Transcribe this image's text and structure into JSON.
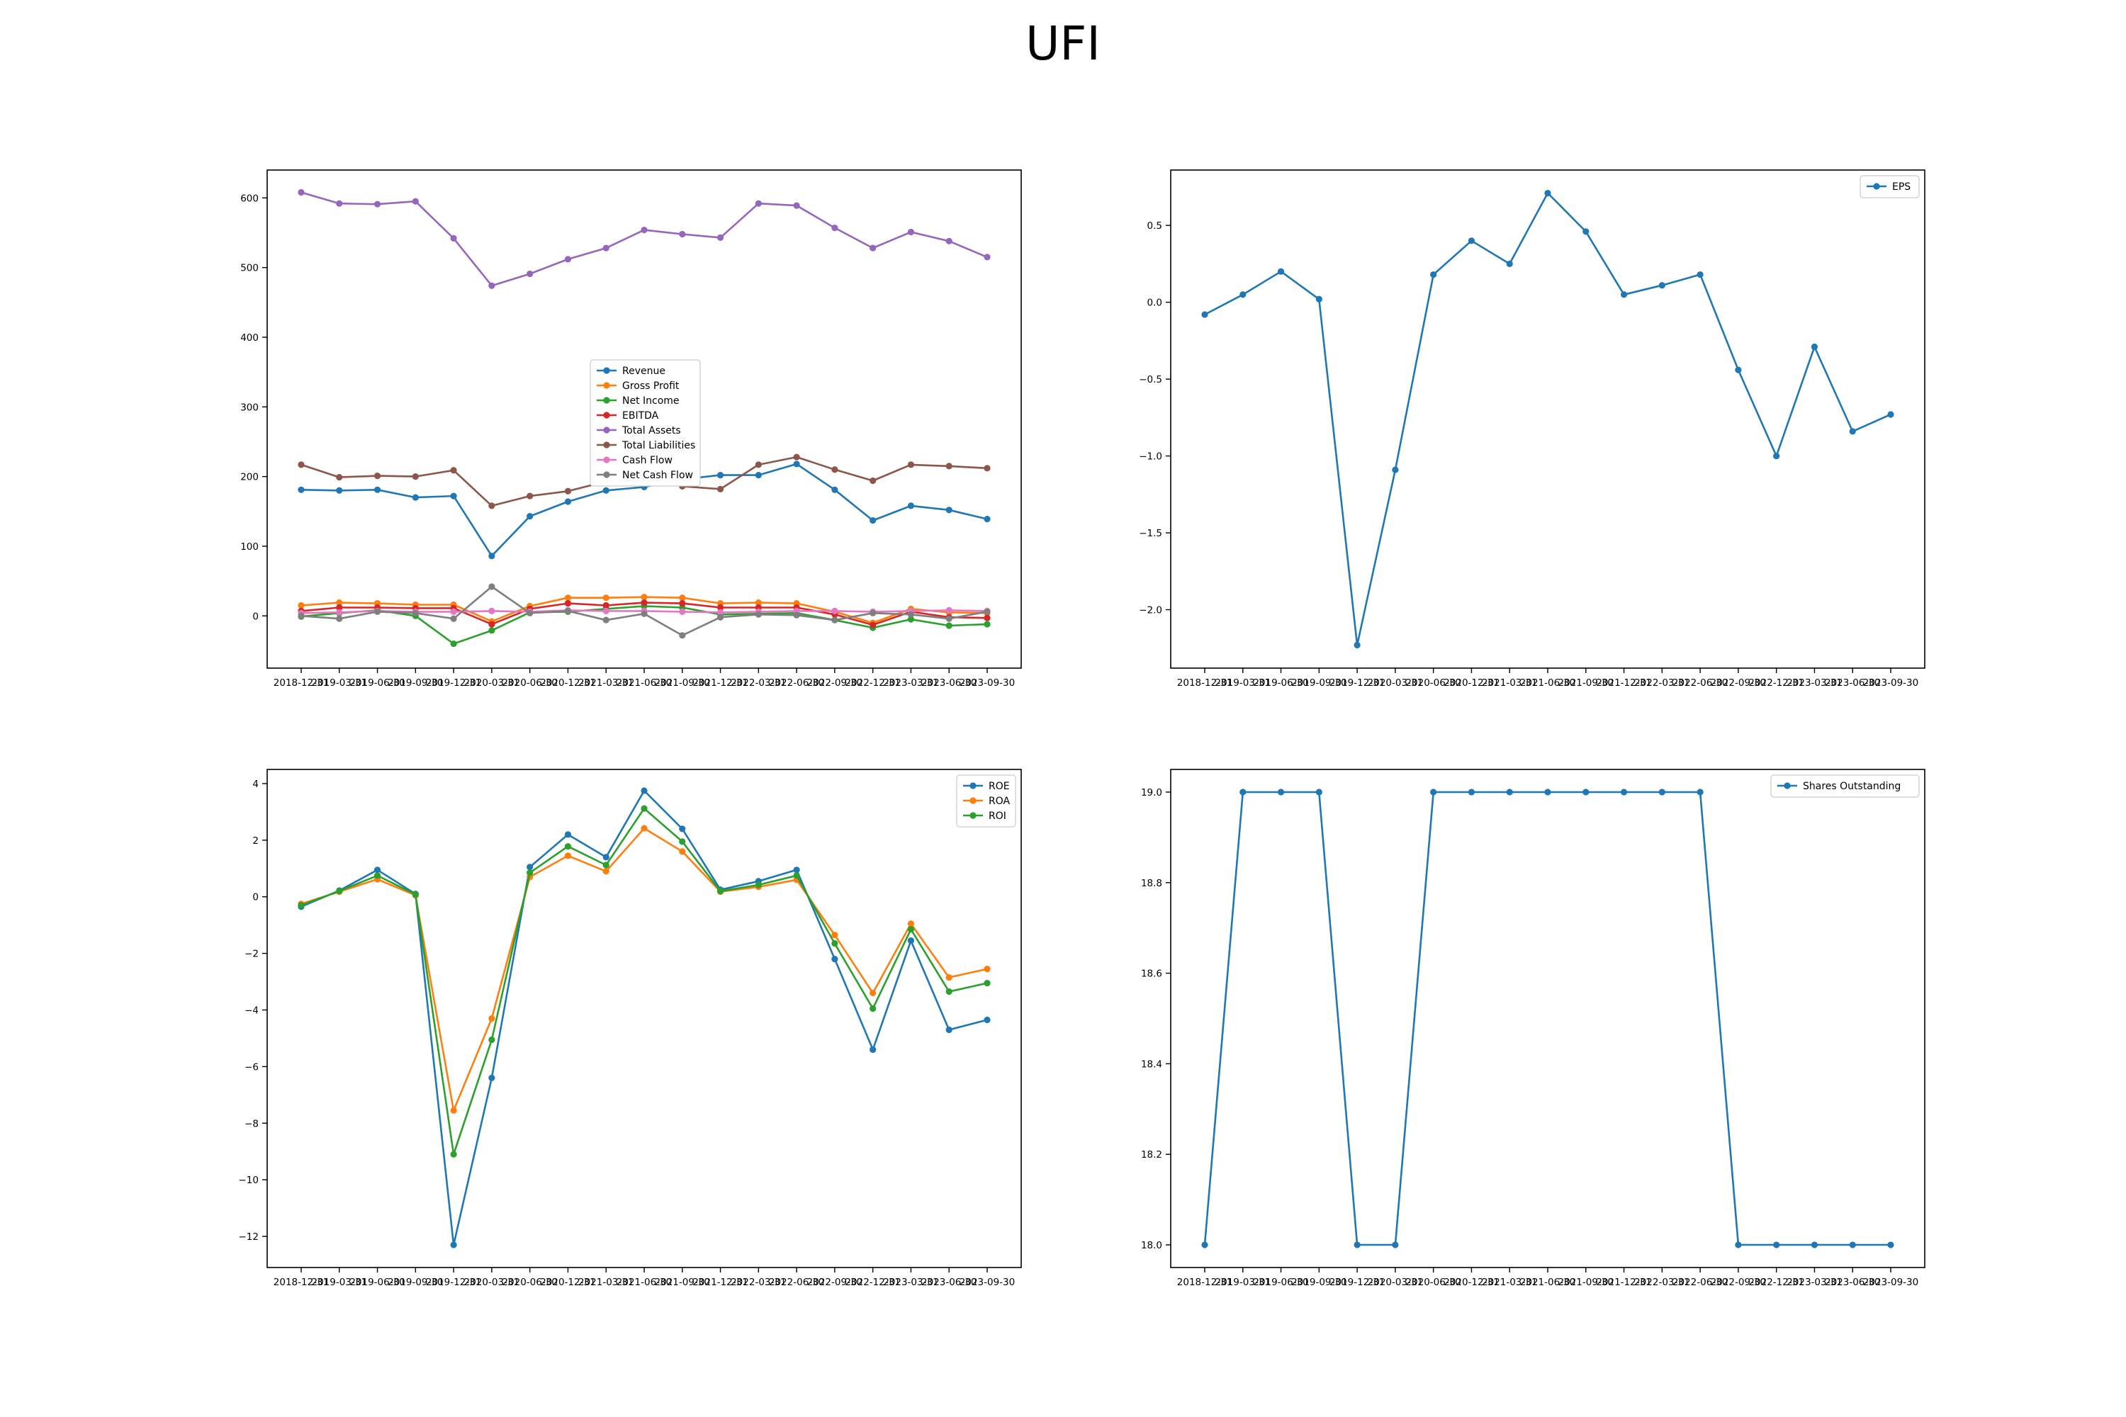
{
  "title": "UFI",
  "chart_data": [
    {
      "type": "line",
      "title": "",
      "xlabel": "",
      "ylabel": "",
      "x": [
        "2018-12-31",
        "2019-03-31",
        "2019-06-30",
        "2019-09-30",
        "2019-12-31",
        "2020-03-31",
        "2020-06-30",
        "2020-12-31",
        "2021-03-31",
        "2021-06-30",
        "2021-09-30",
        "2021-12-31",
        "2022-03-31",
        "2022-06-30",
        "2022-09-30",
        "2022-12-31",
        "2023-03-31",
        "2023-06-30",
        "2023-09-30"
      ],
      "ylim": [
        -75,
        640
      ],
      "yticks": [
        0,
        100,
        200,
        300,
        400,
        500,
        600
      ],
      "legend": "center",
      "grid": false,
      "series": [
        {
          "name": "Revenue",
          "color": "#1f77b4",
          "values": [
            181,
            180,
            181,
            170,
            172,
            86,
            143,
            164,
            180,
            185,
            196,
            202,
            202,
            218,
            181,
            137,
            158,
            152,
            139
          ]
        },
        {
          "name": "Gross Profit",
          "color": "#ff7f0e",
          "values": [
            15,
            19,
            18,
            16,
            16,
            -8,
            14,
            26,
            26,
            27,
            26,
            18,
            19,
            18,
            6,
            -10,
            10,
            5,
            4
          ]
        },
        {
          "name": "Net Income",
          "color": "#2ca02c",
          "values": [
            -1,
            4,
            8,
            0,
            -40,
            -21,
            5,
            6,
            10,
            14,
            12,
            2,
            3,
            4,
            -6,
            -17,
            -5,
            -14,
            -12
          ]
        },
        {
          "name": "EBITDA",
          "color": "#d62728",
          "values": [
            7,
            12,
            12,
            11,
            11,
            -12,
            10,
            18,
            15,
            19,
            18,
            12,
            12,
            12,
            2,
            -13,
            6,
            -2,
            -3
          ]
        },
        {
          "name": "Total Assets",
          "color": "#9467bd",
          "values": [
            608,
            592,
            591,
            595,
            542,
            474,
            491,
            512,
            528,
            554,
            548,
            543,
            592,
            589,
            557,
            528,
            551,
            538,
            515
          ]
        },
        {
          "name": "Total Liabilities",
          "color": "#8c564b",
          "values": [
            217,
            199,
            201,
            200,
            209,
            158,
            172,
            179,
            193,
            197,
            186,
            182,
            217,
            228,
            210,
            194,
            217,
            215,
            212
          ]
        },
        {
          "name": "Cash Flow",
          "color": "#e377c2",
          "values": [
            4,
            5,
            7,
            6,
            6,
            7,
            6,
            8,
            7,
            7,
            6,
            5,
            6,
            7,
            7,
            6,
            7,
            8,
            7
          ]
        },
        {
          "name": "Net Cash Flow",
          "color": "#7f7f7f",
          "values": [
            0,
            -4,
            6,
            4,
            -4,
            42,
            4,
            7,
            -6,
            3,
            -28,
            -2,
            2,
            1,
            -6,
            4,
            2,
            -4,
            6
          ]
        }
      ]
    },
    {
      "type": "line",
      "title": "",
      "xlabel": "",
      "ylabel": "",
      "x": [
        "2018-12-31",
        "2019-03-31",
        "2019-06-30",
        "2019-09-30",
        "2019-12-31",
        "2020-03-31",
        "2020-06-30",
        "2020-12-31",
        "2021-03-31",
        "2021-06-30",
        "2021-09-30",
        "2021-12-31",
        "2022-03-31",
        "2022-06-30",
        "2022-09-30",
        "2022-12-31",
        "2023-03-31",
        "2023-06-30",
        "2023-09-30"
      ],
      "ylim": [
        -2.38,
        0.86
      ],
      "yticks": [
        -2.0,
        -1.5,
        -1.0,
        -0.5,
        0.0,
        0.5
      ],
      "legend": "upper right",
      "grid": false,
      "series": [
        {
          "name": "EPS",
          "color": "#1f77b4",
          "values": [
            -0.08,
            0.05,
            0.2,
            0.02,
            -2.23,
            -1.09,
            0.18,
            0.4,
            0.25,
            0.71,
            0.46,
            0.05,
            0.11,
            0.18,
            -0.44,
            -1.0,
            -0.29,
            -0.84,
            -0.73
          ]
        }
      ]
    },
    {
      "type": "line",
      "title": "",
      "xlabel": "",
      "ylabel": "",
      "x": [
        "2018-12-31",
        "2019-03-31",
        "2019-06-30",
        "2019-09-30",
        "2019-12-31",
        "2020-03-31",
        "2020-06-30",
        "2020-12-31",
        "2021-03-31",
        "2021-06-30",
        "2021-09-30",
        "2021-12-31",
        "2022-03-31",
        "2022-06-30",
        "2022-09-30",
        "2022-12-31",
        "2023-03-31",
        "2023-06-30",
        "2023-09-30"
      ],
      "ylim": [
        -13.1,
        4.5
      ],
      "yticks": [
        -12,
        -10,
        -8,
        -6,
        -4,
        -2,
        0,
        2,
        4
      ],
      "legend": "upper right",
      "grid": false,
      "series": [
        {
          "name": "ROE",
          "color": "#1f77b4",
          "values": [
            -0.35,
            0.22,
            0.95,
            0.1,
            -12.3,
            -6.4,
            1.05,
            2.2,
            1.4,
            3.75,
            2.4,
            0.25,
            0.55,
            0.95,
            -2.2,
            -5.4,
            -1.55,
            -4.7,
            -4.35
          ]
        },
        {
          "name": "ROA",
          "color": "#ff7f0e",
          "values": [
            -0.25,
            0.18,
            0.62,
            0.05,
            -7.55,
            -4.3,
            0.7,
            1.45,
            0.9,
            2.42,
            1.6,
            0.18,
            0.35,
            0.6,
            -1.35,
            -3.4,
            -0.95,
            -2.85,
            -2.55
          ]
        },
        {
          "name": "ROI",
          "color": "#2ca02c",
          "values": [
            -0.3,
            0.2,
            0.75,
            0.08,
            -9.1,
            -5.05,
            0.85,
            1.78,
            1.12,
            3.12,
            1.95,
            0.2,
            0.42,
            0.75,
            -1.65,
            -3.95,
            -1.15,
            -3.35,
            -3.05
          ]
        }
      ]
    },
    {
      "type": "line",
      "title": "",
      "xlabel": "",
      "ylabel": "",
      "x": [
        "2018-12-31",
        "2019-03-31",
        "2019-06-30",
        "2019-09-30",
        "2019-12-31",
        "2020-03-31",
        "2020-06-30",
        "2020-12-31",
        "2021-03-31",
        "2021-06-30",
        "2021-09-30",
        "2021-12-31",
        "2022-03-31",
        "2022-06-30",
        "2022-09-30",
        "2022-12-31",
        "2023-03-31",
        "2023-06-30",
        "2023-09-30"
      ],
      "ylim": [
        17.95,
        19.05
      ],
      "yticks": [
        18.0,
        18.2,
        18.4,
        18.6,
        18.8,
        19.0
      ],
      "legend": "upper right",
      "grid": false,
      "series": [
        {
          "name": "Shares Outstanding",
          "color": "#1f77b4",
          "values": [
            18,
            19,
            19,
            19,
            18,
            18,
            19,
            19,
            19,
            19,
            19,
            19,
            19,
            19,
            18,
            18,
            18,
            18,
            18
          ]
        }
      ]
    }
  ]
}
